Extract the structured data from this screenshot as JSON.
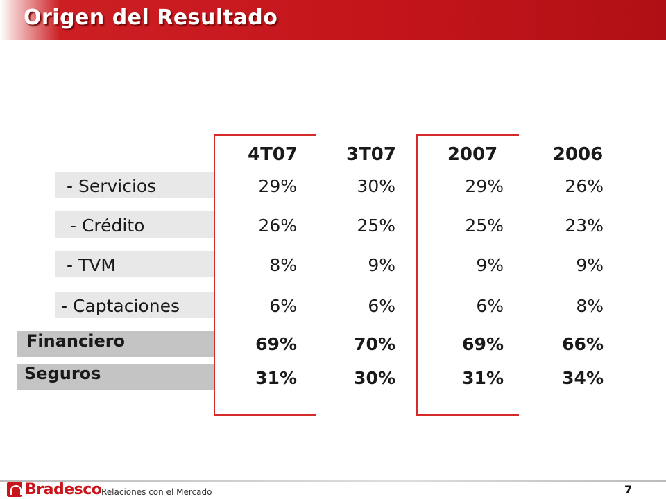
{
  "title": "Origen del Resultado",
  "columns": [
    "4T07",
    "3T07",
    "2007",
    "2006"
  ],
  "rows": [
    {
      "label": "- Servicios",
      "values": [
        "29%",
        "30%",
        "29%",
        "26%"
      ]
    },
    {
      "label": "- Crédito",
      "values": [
        "26%",
        "25%",
        "25%",
        "23%"
      ]
    },
    {
      "label": "- TVM",
      "values": [
        "8%",
        "9%",
        "9%",
        "9%"
      ]
    },
    {
      "label": "- Captaciones",
      "values": [
        "6%",
        "6%",
        "6%",
        "8%"
      ]
    },
    {
      "label": "Financiero",
      "values": [
        "69%",
        "70%",
        "69%",
        "66%"
      ]
    },
    {
      "label": "Seguros",
      "values": [
        "31%",
        "30%",
        "31%",
        "34%"
      ]
    }
  ],
  "footer": {
    "brand": "Bradesco",
    "subtitle": "Relaciones con el Mercado",
    "page": "7"
  },
  "colors": {
    "banner": "#c4151b",
    "highlight_border": "#d42a2a",
    "sub_row_strip": "#e8e8e8",
    "total_row_strip": "#c4c4c4"
  }
}
